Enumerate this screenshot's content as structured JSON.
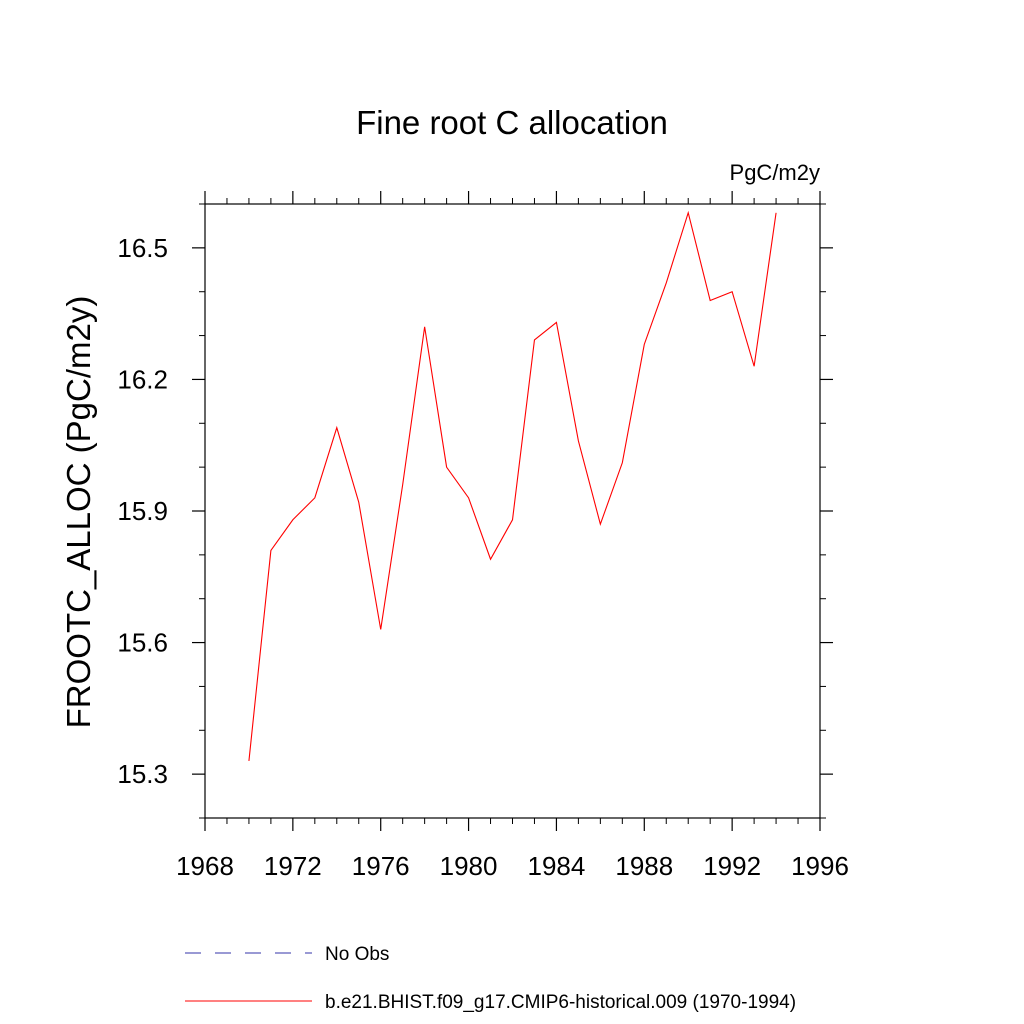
{
  "chart_data": {
    "type": "line",
    "title": "Fine root C allocation",
    "units_label": "PgC/m2y",
    "ylabel": "FROOTC_ALLOC  (PgC/m2y)",
    "xlabel": "",
    "xlim": [
      1968,
      1996
    ],
    "ylim": [
      15.2,
      16.6
    ],
    "x_ticks": [
      1968,
      1972,
      1976,
      1980,
      1984,
      1988,
      1992,
      1996
    ],
    "x_tick_labels": [
      "1968",
      "1972",
      "1976",
      "1980",
      "1984",
      "1988",
      "1992",
      "1996"
    ],
    "y_ticks": [
      15.3,
      15.6,
      15.9,
      16.2,
      16.5
    ],
    "y_tick_labels": [
      "15.3",
      "15.6",
      "15.9",
      "16.2",
      "16.5"
    ],
    "grid": false,
    "legend_position": "bottom",
    "series": [
      {
        "name": "b.e21.BHIST.f09_g17.CMIP6-historical.009 (1970-1994)",
        "color": "#ff0000",
        "style": "solid",
        "x": [
          1970,
          1971,
          1972,
          1973,
          1974,
          1975,
          1976,
          1977,
          1978,
          1979,
          1980,
          1981,
          1982,
          1983,
          1984,
          1985,
          1986,
          1987,
          1988,
          1989,
          1990,
          1991,
          1992,
          1993,
          1994
        ],
        "y": [
          15.33,
          15.81,
          15.88,
          15.93,
          16.09,
          15.92,
          15.63,
          15.96,
          16.32,
          16.0,
          15.93,
          15.79,
          15.88,
          16.29,
          16.33,
          16.06,
          15.87,
          16.01,
          16.28,
          16.42,
          16.58,
          16.38,
          16.4,
          16.23,
          16.58
        ]
      }
    ],
    "legend": [
      {
        "label": "No Obs",
        "color": "#3333aa",
        "style": "dashed"
      },
      {
        "label": "b.e21.BHIST.f09_g17.CMIP6-historical.009 (1970-1994)",
        "color": "#ff0000",
        "style": "solid"
      }
    ]
  }
}
